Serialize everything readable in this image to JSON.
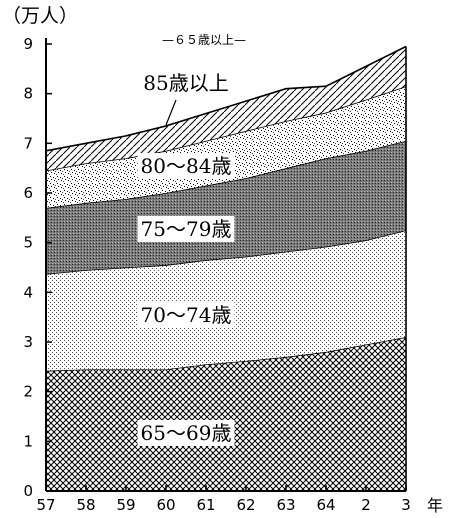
{
  "chart_data": {
    "type": "area",
    "title": "—６５歳以上—",
    "ylabel": "（万人）",
    "xlabel": "年",
    "ylim": [
      0,
      9
    ],
    "yticks": [
      0,
      1,
      2,
      3,
      4,
      5,
      6,
      7,
      8,
      9
    ],
    "categories": [
      "57",
      "58",
      "59",
      "60",
      "61",
      "62",
      "63",
      "64",
      "2",
      "3"
    ],
    "series": [
      {
        "name": "65〜69歳",
        "pattern": "crosshatch",
        "cumulative": [
          2.42,
          2.45,
          2.45,
          2.45,
          2.55,
          2.62,
          2.7,
          2.8,
          2.95,
          3.1
        ]
      },
      {
        "name": "70〜74歳",
        "pattern": "fine-dots",
        "cumulative": [
          4.37,
          4.45,
          4.5,
          4.55,
          4.65,
          4.72,
          4.82,
          4.92,
          5.05,
          5.25
        ]
      },
      {
        "name": "75〜79歳",
        "pattern": "dense-dots",
        "cumulative": [
          5.7,
          5.8,
          5.88,
          6.0,
          6.15,
          6.3,
          6.5,
          6.7,
          6.85,
          7.05
        ]
      },
      {
        "name": "80〜84歳",
        "pattern": "speckle",
        "cumulative": [
          6.45,
          6.6,
          6.7,
          6.85,
          7.05,
          7.25,
          7.45,
          7.62,
          7.88,
          8.15
        ]
      },
      {
        "name": "85歳以上",
        "pattern": "diagonal",
        "cumulative": [
          6.85,
          7.0,
          7.15,
          7.35,
          7.6,
          7.85,
          8.1,
          8.15,
          8.55,
          8.95
        ]
      }
    ],
    "legend": "in-area labels"
  }
}
